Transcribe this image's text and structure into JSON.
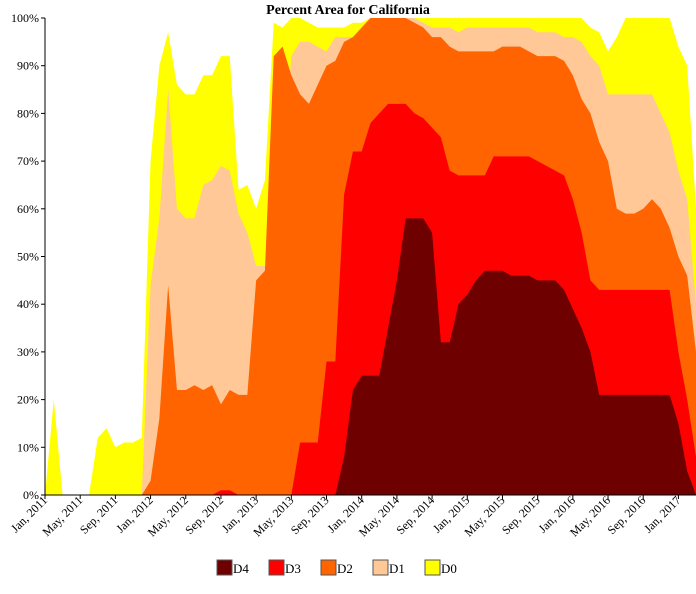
{
  "chart_data": {
    "type": "area",
    "title": "Percent Area for California",
    "xlabel": "",
    "ylabel": "",
    "ylim": [
      0,
      100
    ],
    "grid": false,
    "legend_position": "bottom",
    "x_tick_labels": [
      "Jan, 2011",
      "May, 2011",
      "Sep, 2011",
      "Jan, 2012",
      "May, 2012",
      "Sep, 2012",
      "Jan, 2013",
      "May, 2013",
      "Sep, 2013",
      "Jan, 2014",
      "May, 2014",
      "Sep, 2014",
      "Jan, 2015",
      "May, 2015",
      "Sep, 2015",
      "Jan, 2016",
      "May, 2016",
      "Sep, 2016",
      "Jan, 2017"
    ],
    "y_tick_labels": [
      "0%",
      "10%",
      "20%",
      "30%",
      "40%",
      "50%",
      "60%",
      "70%",
      "80%",
      "90%",
      "100%"
    ],
    "x": [
      "2011-01",
      "2011-02",
      "2011-03",
      "2011-04",
      "2011-05",
      "2011-06",
      "2011-07",
      "2011-08",
      "2011-09",
      "2011-10",
      "2011-11",
      "2011-12",
      "2012-01",
      "2012-02",
      "2012-03",
      "2012-04",
      "2012-05",
      "2012-06",
      "2012-07",
      "2012-08",
      "2012-09",
      "2012-10",
      "2012-11",
      "2012-12",
      "2013-01",
      "2013-02",
      "2013-03",
      "2013-04",
      "2013-05",
      "2013-06",
      "2013-07",
      "2013-08",
      "2013-09",
      "2013-10",
      "2013-11",
      "2013-12",
      "2014-01",
      "2014-02",
      "2014-03",
      "2014-04",
      "2014-05",
      "2014-06",
      "2014-07",
      "2014-08",
      "2014-09",
      "2014-10",
      "2014-11",
      "2014-12",
      "2015-01",
      "2015-02",
      "2015-03",
      "2015-04",
      "2015-05",
      "2015-06",
      "2015-07",
      "2015-08",
      "2015-09",
      "2015-10",
      "2015-11",
      "2015-12",
      "2016-01",
      "2016-02",
      "2016-03",
      "2016-04",
      "2016-05",
      "2016-06",
      "2016-07",
      "2016-08",
      "2016-09",
      "2016-10",
      "2016-11",
      "2016-12",
      "2017-01",
      "2017-02",
      "2017-03"
    ],
    "series": [
      {
        "name": "D0",
        "color": "#ffff00",
        "values": [
          0,
          20,
          0,
          0,
          0,
          0,
          12,
          14,
          10,
          11,
          11,
          12,
          70,
          90,
          97,
          86,
          84,
          84,
          88,
          88,
          92,
          92,
          64,
          65,
          60,
          66,
          99,
          98,
          100,
          100,
          99,
          98,
          98,
          98,
          98,
          99,
          99,
          100,
          100,
          100,
          100,
          100,
          100,
          100,
          100,
          100,
          100,
          100,
          100,
          100,
          100,
          100,
          100,
          100,
          100,
          100,
          100,
          100,
          100,
          100,
          100,
          100,
          98,
          97,
          93,
          96,
          100,
          100,
          100,
          100,
          100,
          100,
          94,
          90,
          60
        ]
      },
      {
        "name": "D1",
        "color": "#ffc896",
        "values": [
          0,
          0,
          0,
          0,
          0,
          0,
          0,
          0,
          0,
          0,
          0,
          0,
          44,
          58,
          85,
          60,
          58,
          58,
          65,
          66,
          69,
          68,
          59,
          55,
          48,
          48,
          47,
          68,
          92,
          95,
          95,
          94,
          93,
          96,
          96,
          96,
          97,
          99,
          100,
          100,
          100,
          100,
          100,
          99,
          98,
          98,
          98,
          97,
          98,
          98,
          98,
          98,
          98,
          98,
          98,
          98,
          97,
          97,
          97,
          96,
          96,
          95,
          92,
          90,
          84,
          84,
          84,
          84,
          84,
          84,
          80,
          76,
          68,
          62,
          40
        ]
      },
      {
        "name": "D2",
        "color": "#ff6400",
        "values": [
          0,
          0,
          0,
          0,
          0,
          0,
          0,
          0,
          0,
          0,
          0,
          0,
          3,
          16,
          44,
          22,
          22,
          23,
          22,
          23,
          19,
          22,
          21,
          21,
          45,
          47,
          92,
          94,
          88,
          84,
          82,
          86,
          90,
          91,
          95,
          96,
          98,
          100,
          100,
          100,
          100,
          100,
          99,
          98,
          96,
          96,
          94,
          93,
          93,
          93,
          93,
          93,
          94,
          94,
          94,
          93,
          92,
          92,
          92,
          91,
          88,
          83,
          80,
          74,
          70,
          60,
          59,
          59,
          60,
          62,
          60,
          56,
          50,
          46,
          30
        ]
      },
      {
        "name": "D3",
        "color": "#ff0000",
        "values": [
          0,
          0,
          0,
          0,
          0,
          0,
          0,
          0,
          0,
          0,
          0,
          0,
          0,
          0,
          0,
          0,
          0,
          0,
          0,
          0,
          1,
          1,
          0,
          0,
          0,
          0,
          0,
          0,
          0,
          11,
          11,
          11,
          28,
          28,
          63,
          72,
          72,
          78,
          80,
          82,
          82,
          82,
          80,
          79,
          77,
          75,
          68,
          67,
          67,
          67,
          67,
          71,
          71,
          71,
          71,
          71,
          70,
          69,
          68,
          67,
          62,
          55,
          45,
          43,
          43,
          43,
          43,
          43,
          43,
          43,
          43,
          43,
          30,
          20,
          8
        ]
      },
      {
        "name": "D4",
        "color": "#6e0000",
        "values": [
          0,
          0,
          0,
          0,
          0,
          0,
          0,
          0,
          0,
          0,
          0,
          0,
          0,
          0,
          0,
          0,
          0,
          0,
          0,
          0,
          0,
          0,
          0,
          0,
          0,
          0,
          0,
          0,
          0,
          0,
          0,
          0,
          0,
          0,
          8,
          22,
          25,
          25,
          25,
          35,
          45,
          58,
          58,
          58,
          55,
          32,
          32,
          40,
          42,
          45,
          47,
          47,
          47,
          46,
          46,
          46,
          45,
          45,
          45,
          43,
          39,
          35,
          30,
          21,
          21,
          21,
          21,
          21,
          21,
          21,
          21,
          21,
          15,
          5,
          0
        ]
      }
    ]
  }
}
